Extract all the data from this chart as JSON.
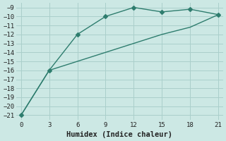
{
  "line1_x": [
    0,
    3,
    6,
    9,
    12,
    15,
    18,
    21
  ],
  "line1_y": [
    -21,
    -16,
    -12,
    -10,
    -9,
    -9.5,
    -9.2,
    -9.8
  ],
  "line2_x": [
    0,
    3,
    6,
    9,
    12,
    15,
    18,
    21
  ],
  "line2_y": [
    -21,
    -16,
    -15,
    -14,
    -13,
    -12,
    -11.2,
    -9.8
  ],
  "line_color": "#2e7d6e",
  "bg_color": "#cce8e4",
  "grid_color": "#aacfcb",
  "xlabel": "Humidex (Indice chaleur)",
  "ylim": [
    -21.5,
    -8.5
  ],
  "xlim": [
    -0.5,
    21.5
  ],
  "yticks": [
    -9,
    -10,
    -11,
    -12,
    -13,
    -14,
    -15,
    -16,
    -17,
    -18,
    -19,
    -20,
    -21
  ],
  "xticks": [
    0,
    3,
    6,
    9,
    12,
    15,
    18,
    21
  ],
  "axis_fontsize": 7.5,
  "tick_fontsize": 6.5
}
